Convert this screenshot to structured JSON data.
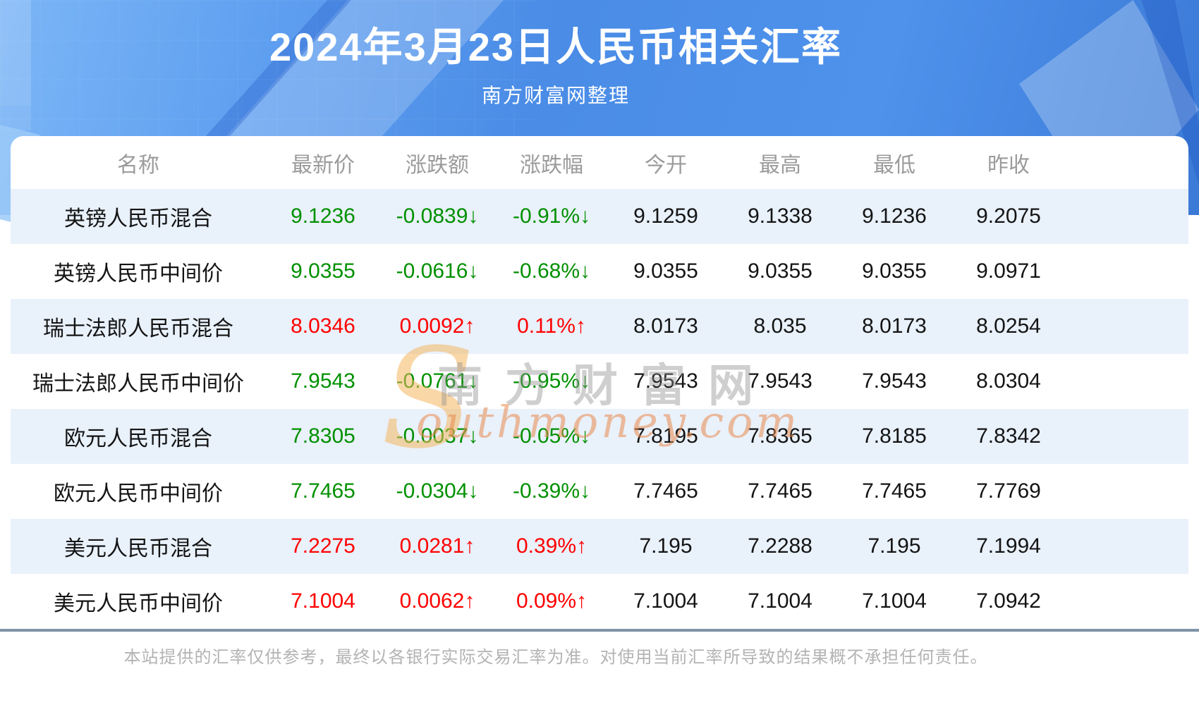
{
  "watermark": {
    "s": "S",
    "cn": "南方财富网",
    "en": "outhmoney.com"
  },
  "footer": {
    "disclaimer": "本站提供的汇率仅供参考，最终以各银行实际交易汇率为准。对使用当前汇率所导致的结果概不承担任何责任。"
  },
  "colors": {
    "up_red": "#fe0101",
    "down_green": "#009000",
    "banner_blue": "#4a8ce6",
    "row_alt_blue": "#e9f1fb",
    "divider_slate": "#8093a6"
  },
  "chart_data": {
    "type": "table",
    "title": "2024年3月23日人民币相关汇率",
    "subtitle": "南方财富网整理",
    "columns": [
      "名称",
      "最新价",
      "涨跌额",
      "涨跌幅",
      "今开",
      "最高",
      "最低",
      "昨收"
    ],
    "rows": [
      {
        "name": "英镑人民币混合",
        "latest": "9.1236",
        "change": "-0.0839↓",
        "change_pct": "-0.91%↓",
        "open": "9.1259",
        "high": "9.1338",
        "low": "9.1236",
        "prev_close": "9.2075",
        "trend": "down"
      },
      {
        "name": "英镑人民币中间价",
        "latest": "9.0355",
        "change": "-0.0616↓",
        "change_pct": "-0.68%↓",
        "open": "9.0355",
        "high": "9.0355",
        "low": "9.0355",
        "prev_close": "9.0971",
        "trend": "down"
      },
      {
        "name": "瑞士法郎人民币混合",
        "latest": "8.0346",
        "change": "0.0092↑",
        "change_pct": "0.11%↑",
        "open": "8.0173",
        "high": "8.035",
        "low": "8.0173",
        "prev_close": "8.0254",
        "trend": "up"
      },
      {
        "name": "瑞士法郎人民币中间价",
        "latest": "7.9543",
        "change": "-0.0761↓",
        "change_pct": "-0.95%↓",
        "open": "7.9543",
        "high": "7.9543",
        "low": "7.9543",
        "prev_close": "8.0304",
        "trend": "down"
      },
      {
        "name": "欧元人民币混合",
        "latest": "7.8305",
        "change": "-0.0037↓",
        "change_pct": "-0.05%↓",
        "open": "7.8195",
        "high": "7.8365",
        "low": "7.8185",
        "prev_close": "7.8342",
        "trend": "down"
      },
      {
        "name": "欧元人民币中间价",
        "latest": "7.7465",
        "change": "-0.0304↓",
        "change_pct": "-0.39%↓",
        "open": "7.7465",
        "high": "7.7465",
        "low": "7.7465",
        "prev_close": "7.7769",
        "trend": "down"
      },
      {
        "name": "美元人民币混合",
        "latest": "7.2275",
        "change": "0.0281↑",
        "change_pct": "0.39%↑",
        "open": "7.195",
        "high": "7.2288",
        "low": "7.195",
        "prev_close": "7.1994",
        "trend": "up"
      },
      {
        "name": "美元人民币中间价",
        "latest": "7.1004",
        "change": "0.0062↑",
        "change_pct": "0.09%↑",
        "open": "7.1004",
        "high": "7.1004",
        "low": "7.1004",
        "prev_close": "7.0942",
        "trend": "up"
      }
    ]
  }
}
